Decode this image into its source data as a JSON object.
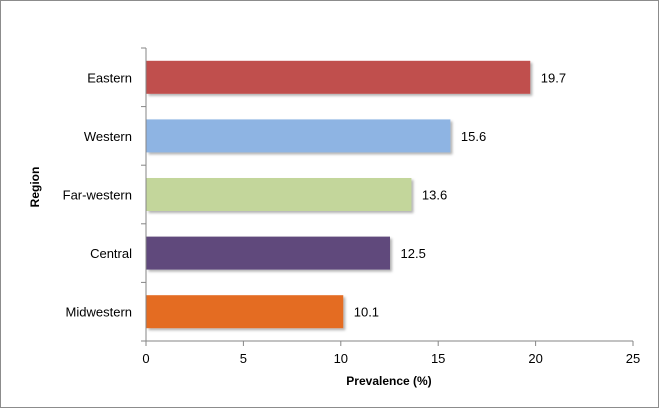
{
  "chart_data": {
    "type": "bar",
    "orientation": "horizontal",
    "categories": [
      "Eastern",
      "Western",
      "Far-western",
      "Central",
      "Midwestern"
    ],
    "values": [
      19.7,
      15.6,
      13.6,
      12.5,
      10.1
    ],
    "data_labels": [
      "19.7",
      "15.6",
      "13.6",
      "12.5",
      "10.1"
    ],
    "colors": [
      "#c0504d",
      "#8eb4e3",
      "#c3d69b",
      "#604a7b",
      "#e46c24"
    ],
    "xlabel": "Prevalence (%)",
    "ylabel": "Region",
    "xlim": [
      0,
      25
    ],
    "x_ticks": [
      "0",
      "5",
      "10",
      "15",
      "20",
      "25"
    ],
    "grid": false,
    "legend": "none"
  }
}
